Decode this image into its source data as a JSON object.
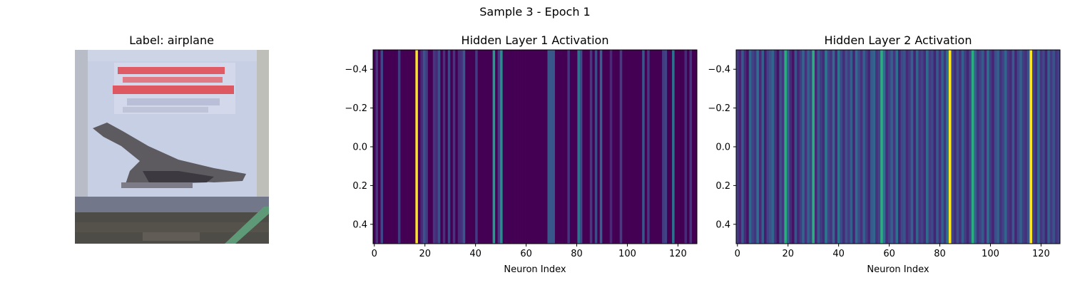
{
  "figure": {
    "suptitle": "Sample 3 - Epoch 1"
  },
  "chart_data": [
    {
      "type": "image",
      "title": "Label: airplane",
      "description_colors": {
        "sky": "#c6d0e6",
        "banner_text": "#e0525a",
        "plane": "#5e5a60",
        "ground": "#4c4b46",
        "stripe": "#5f9a78"
      }
    },
    {
      "type": "heatmap",
      "title": "Hidden Layer 1 Activation",
      "xlabel": "Neuron Index",
      "xticks": [
        0,
        20,
        40,
        60,
        80,
        100,
        120
      ],
      "yticks": [
        -0.4,
        -0.2,
        0.0,
        0.2,
        0.4
      ],
      "xlim": [
        -0.5,
        127.5
      ],
      "ylim": [
        0.5,
        -0.5
      ],
      "colormap": "viridis",
      "values": [
        0,
        0.16,
        0,
        0.22,
        0,
        0,
        0,
        0,
        0,
        0,
        0.18,
        0,
        0,
        0,
        0,
        0,
        0,
        1.0,
        0,
        0.12,
        0.26,
        0.18,
        0,
        0,
        0.16,
        0.12,
        0.24,
        0,
        0.14,
        0,
        0.21,
        0,
        0.15,
        0,
        0.12,
        0.14,
        0.27,
        0,
        0,
        0,
        0,
        0.17,
        0,
        0,
        0,
        0,
        0,
        0,
        0.55,
        0,
        0.18,
        0.5,
        0,
        0,
        0,
        0,
        0,
        0,
        0,
        0,
        0,
        0,
        0,
        0,
        0,
        0,
        0,
        0,
        0,
        0,
        0.27,
        0.27,
        0.27,
        0,
        0,
        0,
        0,
        0,
        0.15,
        0,
        0,
        0,
        0.38,
        0.22,
        0,
        0,
        0,
        0.17,
        0,
        0.23,
        0,
        0.3,
        0,
        0,
        0,
        0.12,
        0,
        0,
        0,
        0.18,
        0,
        0,
        0,
        0,
        0,
        0,
        0,
        0,
        0.27,
        0,
        0.17,
        0,
        0,
        0,
        0,
        0,
        0.18,
        0.2,
        0,
        0,
        0.38,
        0,
        0,
        0,
        0,
        0.12,
        0,
        0.15,
        0,
        0
      ],
      "vmin": 0,
      "vmax": 1
    },
    {
      "type": "heatmap",
      "title": "Hidden Layer 2 Activation",
      "xlabel": "Neuron Index",
      "xticks": [
        0,
        20,
        40,
        60,
        80,
        100,
        120
      ],
      "yticks": [
        -0.4,
        -0.2,
        0.0,
        0.2,
        0.4
      ],
      "xlim": [
        -0.5,
        127.5
      ],
      "ylim": [
        0.5,
        -0.5
      ],
      "colormap": "viridis",
      "values": [
        0.18,
        0.1,
        0.28,
        0.12,
        0.05,
        0.32,
        0.2,
        0.15,
        0.36,
        0.12,
        0.3,
        0.08,
        0.2,
        0.25,
        0.32,
        0.14,
        0.05,
        0.24,
        0.16,
        0.62,
        0.3,
        0.12,
        0.05,
        0.26,
        0.1,
        0.18,
        0.32,
        0.14,
        0.3,
        0.2,
        0.62,
        0.1,
        0.28,
        0.18,
        0.12,
        0.4,
        0.2,
        0.15,
        0.34,
        0.1,
        0.38,
        0.22,
        0.12,
        0.25,
        0.18,
        0.3,
        0.1,
        0.35,
        0.22,
        0.14,
        0.3,
        0.18,
        0.1,
        0.28,
        0.32,
        0.14,
        0.2,
        0.62,
        0.35,
        0.12,
        0.2,
        0.3,
        0.16,
        0.36,
        0.1,
        0.22,
        0.26,
        0.12,
        0.18,
        0.3,
        0.1,
        0.32,
        0.16,
        0.2,
        0.12,
        0.34,
        0.18,
        0.22,
        0.1,
        0.28,
        0.14,
        0.3,
        0.16,
        0.38,
        1.0,
        0.2,
        0.12,
        0.26,
        0.14,
        0.3,
        0.18,
        0.1,
        0.22,
        0.62,
        0.3,
        0.14,
        0.2,
        0.28,
        0.12,
        0.36,
        0.18,
        0.1,
        0.24,
        0.3,
        0.14,
        0.2,
        0.32,
        0.16,
        0.12,
        0.28,
        0.1,
        0.22,
        0.3,
        0.18,
        0.14,
        0.26,
        1.0,
        0.2,
        0.12,
        0.34,
        0.16,
        0.22,
        0.1,
        0.3,
        0.18,
        0.26,
        0.14,
        0.2
      ],
      "vmin": 0,
      "vmax": 1
    }
  ]
}
